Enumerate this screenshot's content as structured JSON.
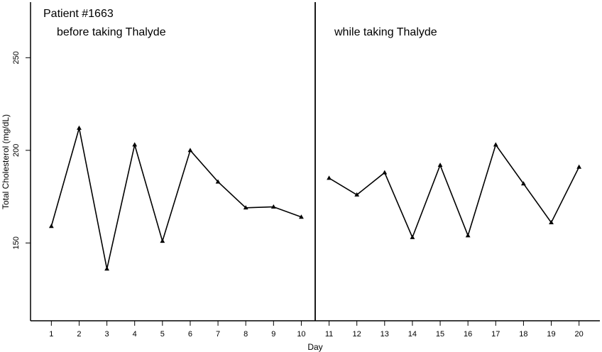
{
  "chart_data": {
    "type": "line",
    "xlabel": "Day",
    "ylabel": "Total Cholesterol (mg/dL)",
    "x_ticks": [
      1,
      2,
      3,
      4,
      5,
      6,
      7,
      8,
      9,
      10,
      11,
      12,
      13,
      14,
      15,
      16,
      17,
      18,
      19,
      20
    ],
    "y_ticks": [
      150,
      200,
      250
    ],
    "xlim": [
      0.25,
      20.75
    ],
    "ylim": [
      108,
      280
    ],
    "grid": false,
    "annotations": {
      "patient": "Patient #1663",
      "before": "before taking Thalyde",
      "while": "while taking Thalyde"
    },
    "divider_x": 10.5,
    "series": [
      {
        "x": [
          1,
          2,
          3,
          4,
          5,
          6,
          7,
          8,
          9,
          10
        ],
        "values": [
          159,
          212,
          136,
          203,
          151,
          200,
          183,
          169,
          169.5,
          164
        ]
      },
      {
        "x": [
          11,
          12,
          13,
          14,
          15,
          16,
          17,
          18,
          19,
          20
        ],
        "values": [
          185,
          176,
          188,
          153,
          192,
          154,
          203,
          182,
          161,
          191
        ]
      }
    ]
  }
}
